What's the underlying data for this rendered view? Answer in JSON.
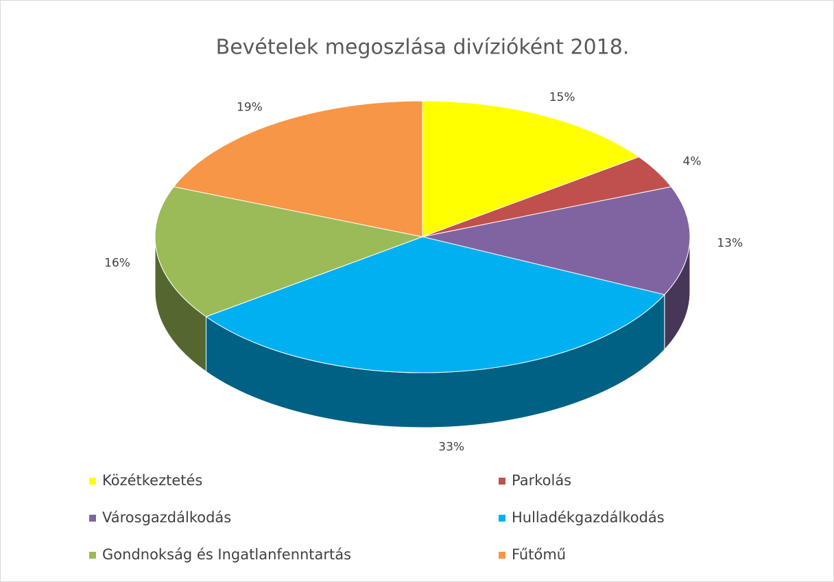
{
  "chart_data": {
    "type": "pie3d",
    "title": "Bevételek megoszlása divízióként 2018.",
    "categories": [
      "Közétkeztetés",
      "Parkolás",
      "Városgazdálkodás",
      "Hulladékgazdálkodás",
      "Gondnokság és Ingatlanfenntartás",
      "Fűtőmű"
    ],
    "values": [
      15,
      4,
      13,
      33,
      16,
      19
    ],
    "value_labels": [
      "15%",
      "4%",
      "13%",
      "33%",
      "16%",
      "19%"
    ],
    "colors": [
      "#ffff00",
      "#c0504d",
      "#8064a2",
      "#00b0f0",
      "#9bbb59",
      "#f79646"
    ],
    "legend": "bottom"
  }
}
